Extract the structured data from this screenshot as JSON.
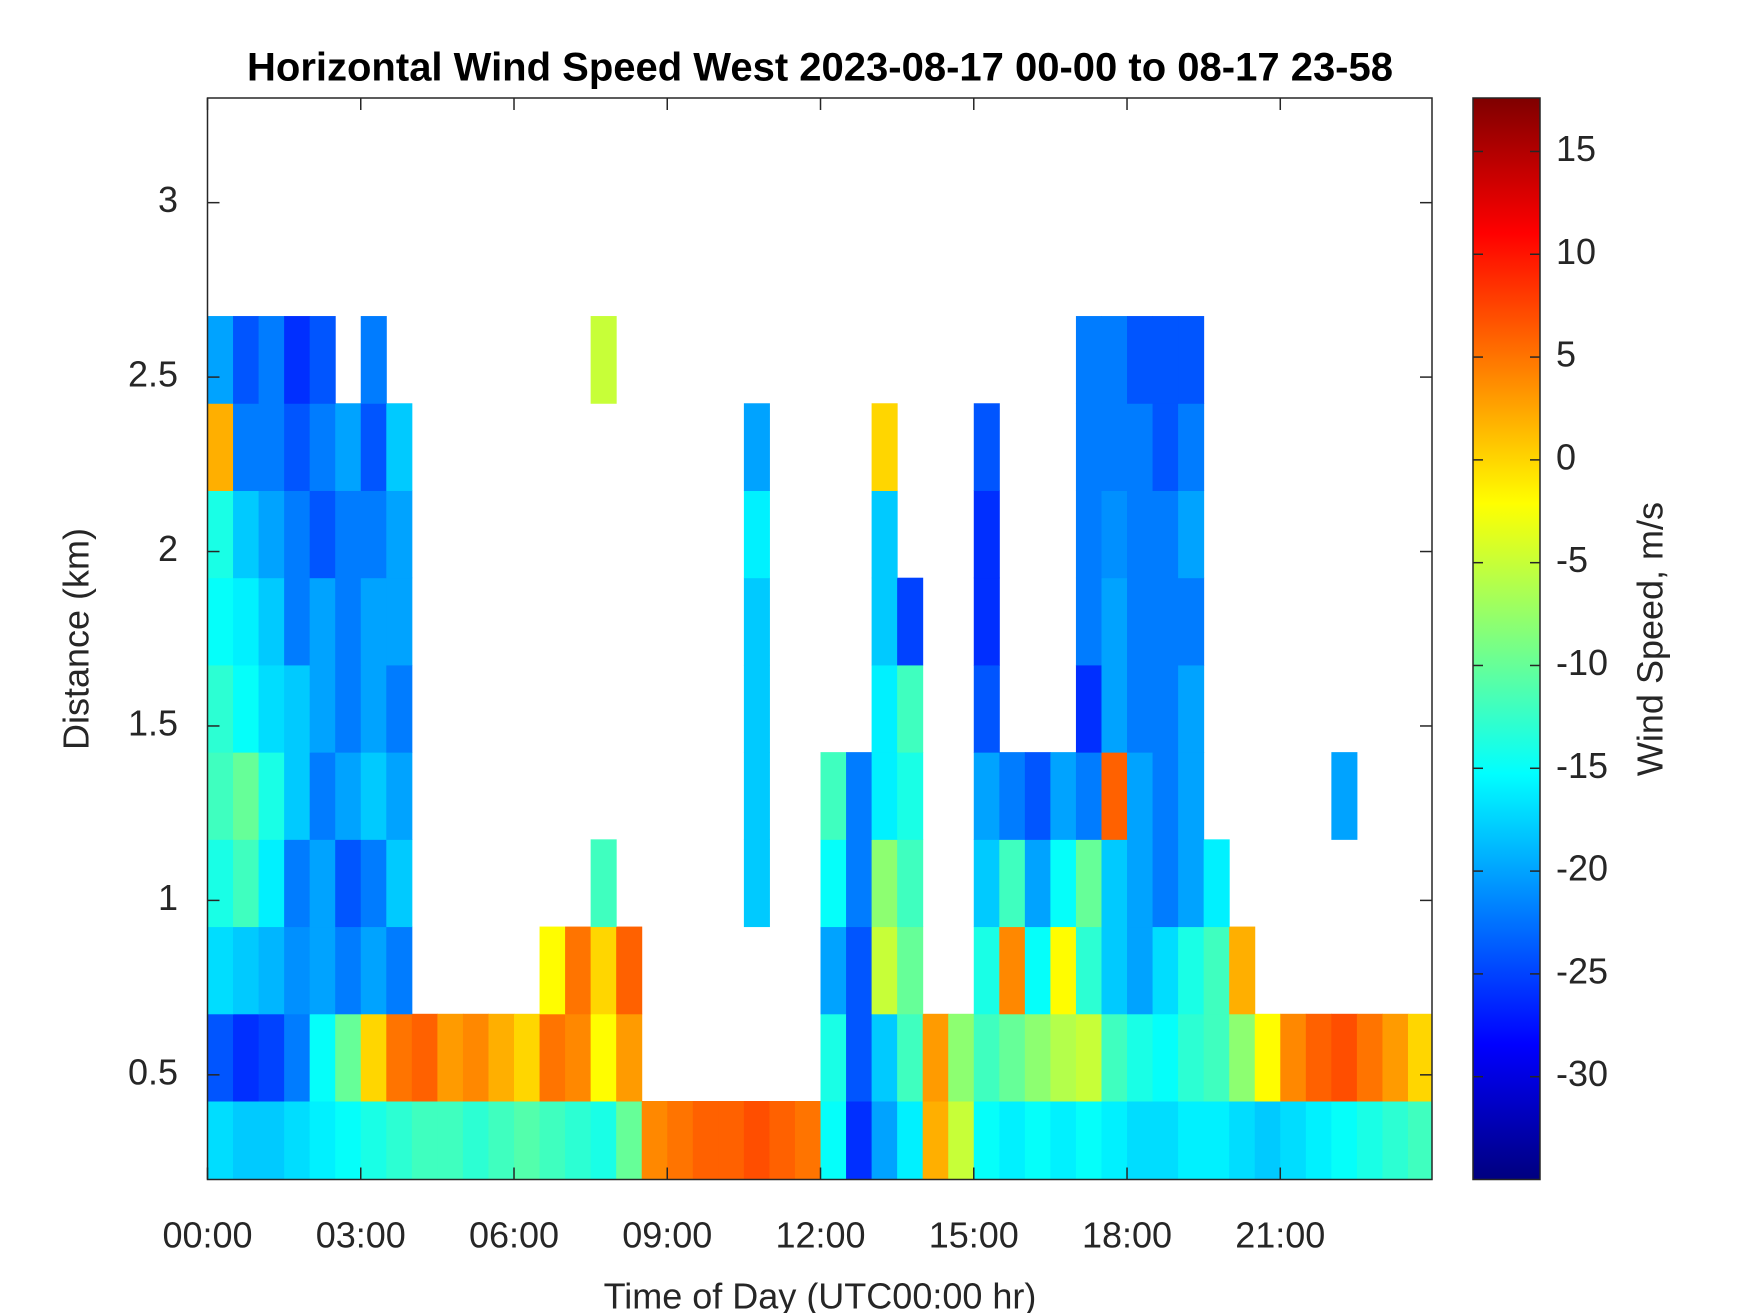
{
  "chart_data": {
    "type": "heatmap",
    "title": "Horizontal Wind Speed West 2023-08-17 00-00 to 08-17 23-58",
    "xlabel": "Time of Day (UTC00:00 hr)",
    "ylabel": "Distance (km)",
    "x": [
      0.25,
      0.75,
      1.25,
      1.75,
      2.25,
      2.75,
      3.25,
      3.75,
      4.25,
      4.75,
      5.25,
      5.75,
      6.25,
      6.75,
      7.25,
      7.75,
      8.25,
      8.75,
      9.25,
      9.75,
      10.25,
      10.75,
      11.25,
      11.75,
      12.25,
      12.75,
      13.25,
      13.75,
      14.25,
      14.75,
      15.25,
      15.75,
      16.25,
      16.75,
      17.25,
      17.75,
      18.25,
      18.75,
      19.25,
      19.75,
      20.25,
      20.75,
      21.25,
      21.75,
      22.25,
      22.75,
      23.25,
      23.75
    ],
    "y": [
      0.3,
      0.55,
      0.8,
      1.05,
      1.3,
      1.55,
      1.8,
      2.05,
      2.3,
      2.55
    ],
    "z": [
      [
        -17,
        -18,
        -18,
        -17,
        -16,
        -15,
        -14,
        -13,
        -12,
        -12,
        -13,
        -12,
        -11,
        -12,
        -13,
        -14,
        -10,
        4,
        5,
        6,
        6,
        7,
        6,
        5,
        -15,
        -26,
        -20,
        -16,
        2,
        -5,
        -15,
        -16,
        -15,
        -16,
        -15,
        -16,
        -17,
        -17,
        -16,
        -16,
        -17,
        -18,
        -17,
        -16,
        -15,
        -14,
        -13,
        -12
      ],
      [
        -24,
        -26,
        -25,
        -22,
        -15,
        -10,
        0,
        5,
        6,
        3,
        4,
        2,
        0,
        5,
        4,
        -2,
        3,
        null,
        null,
        null,
        null,
        null,
        null,
        null,
        -14,
        -24,
        -18,
        -12,
        3,
        -8,
        -12,
        -10,
        -8,
        -6,
        -5,
        -12,
        -14,
        -15,
        -13,
        -12,
        -8,
        -2,
        4,
        6,
        7,
        5,
        3,
        0
      ],
      [
        -17,
        -18,
        -19,
        -21,
        -20,
        -22,
        -20,
        -22,
        null,
        null,
        null,
        null,
        null,
        -2,
        5,
        0,
        6,
        null,
        null,
        null,
        null,
        null,
        null,
        null,
        -20,
        -24,
        -5,
        -10,
        null,
        null,
        -14,
        4,
        -15,
        -2,
        -13,
        -18,
        -20,
        -17,
        -14,
        -12,
        2,
        null,
        null,
        null,
        null,
        null,
        null,
        null
      ],
      [
        -14,
        -12,
        -16,
        -22,
        -20,
        -24,
        -22,
        -18,
        null,
        null,
        null,
        null,
        null,
        null,
        null,
        -12,
        null,
        null,
        null,
        null,
        null,
        -18,
        null,
        null,
        -15,
        -22,
        -8,
        -12,
        null,
        null,
        -18,
        -12,
        -20,
        -15,
        -10,
        -18,
        -20,
        -22,
        -20,
        -16,
        null,
        null,
        null,
        null,
        null,
        null,
        null,
        null
      ],
      [
        -12,
        -10,
        -14,
        -18,
        -22,
        -20,
        -18,
        -20,
        null,
        null,
        null,
        null,
        null,
        null,
        null,
        null,
        null,
        null,
        null,
        null,
        null,
        -18,
        null,
        null,
        -12,
        -22,
        -16,
        -14,
        null,
        null,
        -20,
        -22,
        -24,
        -20,
        -22,
        6,
        -20,
        -22,
        -20,
        null,
        null,
        null,
        null,
        null,
        -20,
        null,
        null,
        null
      ],
      [
        -13,
        -15,
        -17,
        -18,
        -20,
        -22,
        -20,
        -22,
        null,
        null,
        null,
        null,
        null,
        null,
        null,
        null,
        null,
        null,
        null,
        null,
        null,
        -18,
        null,
        null,
        null,
        null,
        -16,
        -12,
        null,
        null,
        -24,
        null,
        null,
        null,
        -26,
        -20,
        -22,
        -22,
        -20,
        null,
        null,
        null,
        null,
        null,
        null,
        null,
        null,
        null
      ],
      [
        -15,
        -16,
        -18,
        -22,
        -20,
        -22,
        -20,
        -20,
        null,
        null,
        null,
        null,
        null,
        null,
        null,
        null,
        null,
        null,
        null,
        null,
        null,
        -18,
        null,
        null,
        null,
        null,
        -18,
        -25,
        null,
        null,
        -26,
        null,
        null,
        null,
        -22,
        -20,
        -22,
        -22,
        -22,
        null,
        null,
        null,
        null,
        null,
        null,
        null,
        null,
        null
      ],
      [
        -14,
        -18,
        -20,
        -22,
        -24,
        -22,
        -22,
        -20,
        null,
        null,
        null,
        null,
        null,
        null,
        null,
        null,
        null,
        null,
        null,
        null,
        null,
        -16,
        null,
        null,
        null,
        null,
        -18,
        null,
        null,
        null,
        -26,
        null,
        null,
        null,
        -22,
        -21,
        -22,
        -22,
        -20,
        null,
        null,
        null,
        null,
        null,
        null,
        null,
        null,
        null
      ],
      [
        2,
        -22,
        -22,
        -24,
        -22,
        -20,
        -24,
        -18,
        null,
        null,
        null,
        null,
        null,
        null,
        null,
        null,
        null,
        null,
        null,
        null,
        null,
        -20,
        null,
        null,
        null,
        null,
        0,
        null,
        null,
        null,
        -24,
        null,
        null,
        null,
        -22,
        -22,
        -22,
        -24,
        -22,
        null,
        null,
        null,
        null,
        null,
        null,
        null,
        null,
        null
      ],
      [
        -20,
        -24,
        -22,
        -26,
        -24,
        null,
        -22,
        null,
        null,
        null,
        null,
        null,
        null,
        null,
        null,
        -5,
        null,
        null,
        null,
        null,
        null,
        null,
        null,
        null,
        null,
        null,
        null,
        null,
        null,
        null,
        null,
        null,
        null,
        null,
        -22,
        -22,
        -24,
        -24,
        -24,
        null,
        null,
        null,
        null,
        null,
        null,
        null,
        null,
        null
      ]
    ],
    "xlim": [
      0,
      23.97
    ],
    "ylim": [
      0.2,
      3.3
    ],
    "xticks": [
      {
        "value": 0,
        "label": "00:00"
      },
      {
        "value": 3,
        "label": "03:00"
      },
      {
        "value": 6,
        "label": "06:00"
      },
      {
        "value": 9,
        "label": "09:00"
      },
      {
        "value": 12,
        "label": "12:00"
      },
      {
        "value": 15,
        "label": "15:00"
      },
      {
        "value": 18,
        "label": "18:00"
      },
      {
        "value": 21,
        "label": "21:00"
      }
    ],
    "yticks": [
      0.5,
      1,
      1.5,
      2,
      2.5,
      3
    ],
    "colorbar": {
      "label": "Wind Speed, m/s",
      "lim": [
        -35,
        17.6
      ],
      "ticks": [
        -30,
        -25,
        -20,
        -15,
        -10,
        -5,
        0,
        5,
        10,
        15
      ]
    },
    "colormap": [
      "#00007f",
      "#0000ff",
      "#007fff",
      "#00ffff",
      "#7fff7f",
      "#ffff00",
      "#ff7f00",
      "#ff0000",
      "#7f0000"
    ]
  }
}
